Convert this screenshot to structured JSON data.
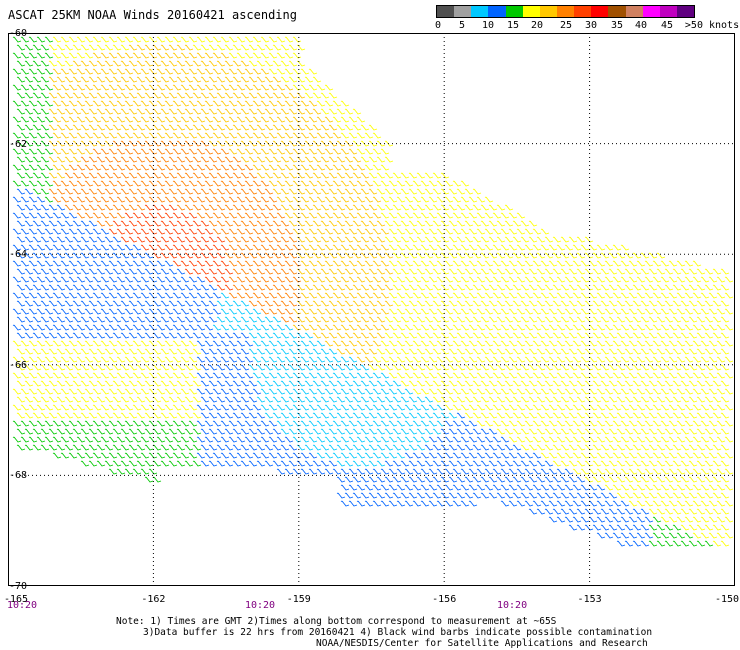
{
  "title": "ASCAT 25KM NOAA Winds 20160421 ascending",
  "colorbar": {
    "colors": [
      "#505050",
      "#a0a0a0",
      "#00c8ff",
      "#0064ff",
      "#00c800",
      "#ffff00",
      "#ffc800",
      "#ff8000",
      "#ff4000",
      "#ff0000",
      "#a05000",
      "#d08060",
      "#ff00ff",
      "#c000c0",
      "#600080"
    ],
    "labels": [
      "0",
      "5",
      "10",
      "15",
      "20",
      "25",
      "30",
      "35",
      "40",
      "45",
      ">50 knots"
    ]
  },
  "map": {
    "lon_ticks": [
      "-165",
      "-162",
      "-159",
      "-156",
      "-153",
      "-150"
    ],
    "lat_ticks": [
      "-60",
      "-62",
      "-64",
      "-66",
      "-68",
      "-70"
    ],
    "times": [
      "10:20",
      "10:20",
      "10:20"
    ],
    "lon_range": [
      -165,
      -150
    ],
    "lat_range": [
      -70,
      -60
    ],
    "gridlines": true
  },
  "notes": {
    "line1": "Note: 1) Times are GMT 2)Times along bottom correspond to measurement at ~65S",
    "line2": "3)Data buffer is 22 hrs from 20160421 4) Black wind barbs indicate possible contamination",
    "line3": "NOAA/NESDIS/Center for Satellite Applications and Research"
  }
}
